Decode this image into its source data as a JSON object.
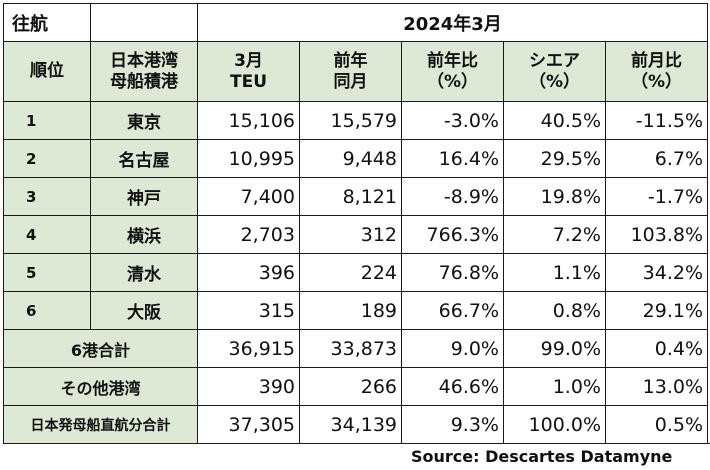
{
  "table": {
    "title": "往航",
    "period": "2024年3月",
    "headers": {
      "rank": "順位",
      "port_line1": "日本港湾",
      "port_line2": "母船積港",
      "teu_line1": "3月",
      "teu_line2": "TEU",
      "prev_line1": "前年",
      "prev_line2": "同月",
      "yoy_line1": "前年比",
      "yoy_line2": "（%）",
      "share_line1": "シエア",
      "share_line2": "（%）",
      "mom_line1": "前月比",
      "mom_line2": "（%）"
    },
    "rows": [
      {
        "rank": "1",
        "port": "東京",
        "teu": "15,106",
        "prev": "15,579",
        "yoy": "-3.0%",
        "share": "40.5%",
        "mom": "-11.5%"
      },
      {
        "rank": "2",
        "port": "名古屋",
        "teu": "10,995",
        "prev": "9,448",
        "yoy": "16.4%",
        "share": "29.5%",
        "mom": "6.7%"
      },
      {
        "rank": "3",
        "port": "神戸",
        "teu": "7,400",
        "prev": "8,121",
        "yoy": "-8.9%",
        "share": "19.8%",
        "mom": "-1.7%"
      },
      {
        "rank": "4",
        "port": "横浜",
        "teu": "2,703",
        "prev": "312",
        "yoy": "766.3%",
        "share": "7.2%",
        "mom": "103.8%"
      },
      {
        "rank": "5",
        "port": "清水",
        "teu": "396",
        "prev": "224",
        "yoy": "76.8%",
        "share": "1.1%",
        "mom": "34.2%"
      },
      {
        "rank": "6",
        "port": "大阪",
        "teu": "315",
        "prev": "189",
        "yoy": "66.7%",
        "share": "0.8%",
        "mom": "29.1%"
      }
    ],
    "totals": [
      {
        "label": "6港合計",
        "teu": "36,915",
        "prev": "33,873",
        "yoy": "9.0%",
        "share": "99.0%",
        "mom": "0.4%"
      },
      {
        "label": "その他港湾",
        "teu": "390",
        "prev": "266",
        "yoy": "46.6%",
        "share": "1.0%",
        "mom": "13.0%"
      },
      {
        "label": "日本発母船直航分合計",
        "teu": "37,305",
        "prev": "34,139",
        "yoy": "9.3%",
        "share": "100.0%",
        "mom": "0.5%"
      }
    ]
  },
  "source": "Source: Descartes Datamyne",
  "colors": {
    "header_fill": "#dde9d5",
    "border": "#1a1a1a"
  }
}
